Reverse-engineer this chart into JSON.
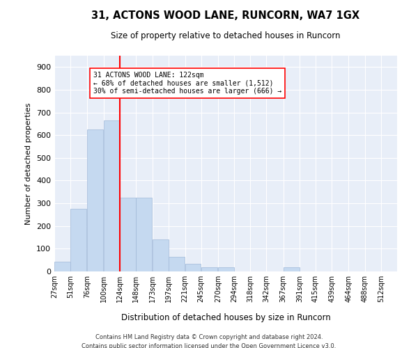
{
  "title1": "31, ACTONS WOOD LANE, RUNCORN, WA7 1GX",
  "title2": "Size of property relative to detached houses in Runcorn",
  "xlabel": "Distribution of detached houses by size in Runcorn",
  "ylabel": "Number of detached properties",
  "bin_labels": [
    "27sqm",
    "51sqm",
    "76sqm",
    "100sqm",
    "124sqm",
    "148sqm",
    "173sqm",
    "197sqm",
    "221sqm",
    "245sqm",
    "270sqm",
    "294sqm",
    "318sqm",
    "342sqm",
    "367sqm",
    "391sqm",
    "415sqm",
    "439sqm",
    "464sqm",
    "488sqm",
    "512sqm"
  ],
  "bin_edges": [
    27,
    51,
    76,
    100,
    124,
    148,
    173,
    197,
    221,
    245,
    270,
    294,
    318,
    342,
    367,
    391,
    415,
    439,
    464,
    488,
    512
  ],
  "bar_heights": [
    42,
    275,
    625,
    665,
    325,
    325,
    140,
    65,
    35,
    18,
    18,
    0,
    0,
    0,
    18,
    0,
    0,
    0,
    0,
    0
  ],
  "bar_color": "#c5d9f0",
  "bar_edge_color": "#a0b8d8",
  "vline_x": 124,
  "vline_color": "red",
  "annotation_text": "31 ACTONS WOOD LANE: 122sqm\n← 68% of detached houses are smaller (1,512)\n30% of semi-detached houses are larger (666) →",
  "annotation_box_color": "white",
  "annotation_box_edge": "red",
  "ylim": [
    0,
    950
  ],
  "yticks": [
    0,
    100,
    200,
    300,
    400,
    500,
    600,
    700,
    800,
    900
  ],
  "background_color": "#e8eef8",
  "footer1": "Contains HM Land Registry data © Crown copyright and database right 2024.",
  "footer2": "Contains public sector information licensed under the Open Government Licence v3.0."
}
